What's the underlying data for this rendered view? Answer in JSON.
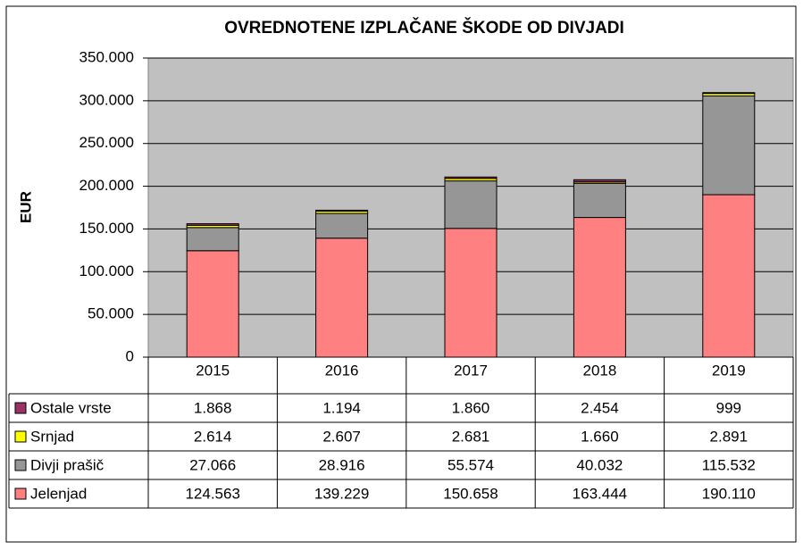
{
  "chart_data": {
    "type": "stacked_bar",
    "title": "OVREDNOTENE IZPLAČANE ŠKODE OD DIVJADI",
    "ylabel": "EUR",
    "categories": [
      "2015",
      "2016",
      "2017",
      "2018",
      "2019"
    ],
    "series": [
      {
        "name": "Jelenjad",
        "color": "#ff8080",
        "values": [
          124563,
          139229,
          150658,
          163444,
          190110
        ],
        "value_labels": [
          "124.563",
          "139.229",
          "150.658",
          "163.444",
          "190.110"
        ]
      },
      {
        "name": "Divji prašič",
        "color": "#969696",
        "values": [
          27066,
          28916,
          55574,
          40032,
          115532
        ],
        "value_labels": [
          "27.066",
          "28.916",
          "55.574",
          "40.032",
          "115.532"
        ]
      },
      {
        "name": "Srnjad",
        "color": "#ffff00",
        "values": [
          2614,
          2607,
          2681,
          1660,
          2891
        ],
        "value_labels": [
          "2.614",
          "2.607",
          "2.681",
          "1.660",
          "2.891"
        ]
      },
      {
        "name": "Ostale vrste",
        "color": "#993366",
        "values": [
          1868,
          1194,
          1860,
          2454,
          999
        ],
        "value_labels": [
          "1.868",
          "1.194",
          "1.860",
          "2.454",
          "999"
        ]
      }
    ],
    "ylim": [
      0,
      350000
    ],
    "yticks": [
      0,
      {
        "value": 50000,
        "label": "50.000"
      },
      {
        "value": 100000,
        "label": "100.000"
      },
      {
        "value": 150000,
        "label": "150.000"
      },
      {
        "value": 200000,
        "label": "200.000"
      },
      {
        "value": 250000,
        "label": "250.000"
      },
      {
        "value": 300000,
        "label": "300.000"
      },
      {
        "value": 350000,
        "label": "350.000"
      }
    ],
    "grid": true,
    "plot_background": "#c0c0c0"
  }
}
